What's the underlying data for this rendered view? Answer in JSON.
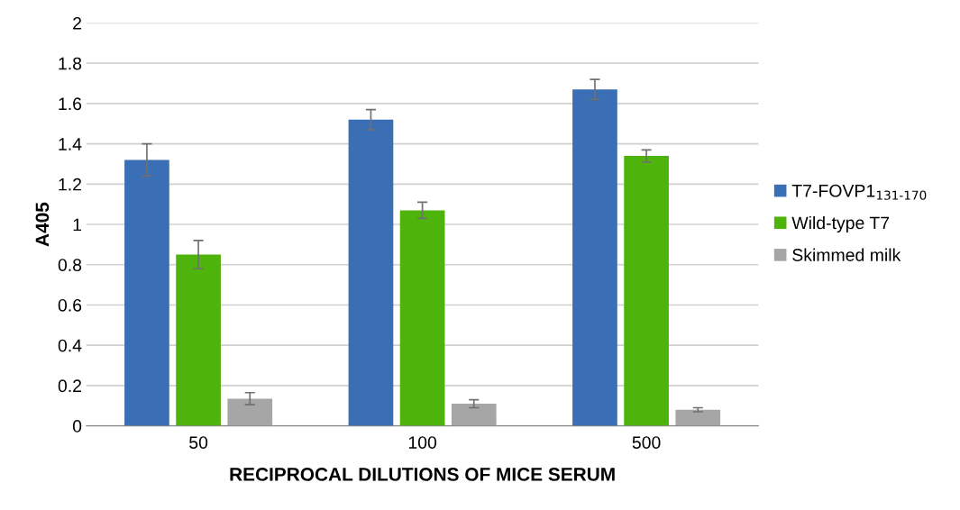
{
  "chart_data": {
    "type": "bar",
    "xlabel": "RECIPROCAL DILUTIONS OF MICE SERUM",
    "ylabel": "A405",
    "categories": [
      "50",
      "100",
      "500"
    ],
    "series": [
      {
        "name": "T7-FOVP1$_{131-170}$",
        "color": "#3a6eb5",
        "values": [
          1.32,
          1.52,
          1.67
        ],
        "errors": [
          0.08,
          0.05,
          0.05
        ]
      },
      {
        "name": "Wild-type T7",
        "color": "#4eb30a",
        "values": [
          0.85,
          1.07,
          1.34
        ],
        "errors": [
          0.07,
          0.04,
          0.03
        ]
      },
      {
        "name": "Skimmed milk",
        "color": "#a6a6a6",
        "values": [
          0.135,
          0.11,
          0.08
        ],
        "errors": [
          0.03,
          0.02,
          0.01
        ]
      }
    ],
    "ylim": [
      0,
      2
    ],
    "yticks": [
      0,
      0.2,
      0.4,
      0.6,
      0.8,
      1,
      1.2,
      1.4,
      1.6,
      1.8,
      2
    ],
    "grid": "y",
    "legend": "right"
  }
}
